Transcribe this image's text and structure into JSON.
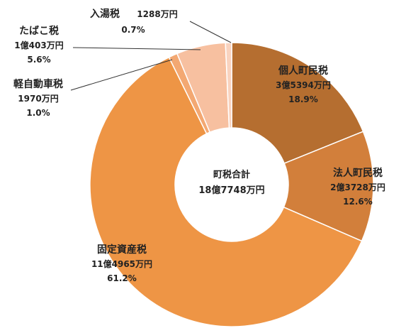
{
  "chart_data": {
    "type": "pie",
    "donut": true,
    "center_label": [
      "町税合計",
      "18億7748万円"
    ],
    "total": "18億7748万円",
    "slices": [
      {
        "name": "個人町民税",
        "amount": "3億5394万円",
        "percent_label": "18.9%",
        "value": 18.9,
        "color": "#b56e30"
      },
      {
        "name": "法人町民税",
        "amount": "2億3728万円",
        "percent_label": "12.6%",
        "value": 12.6,
        "color": "#d27f3b"
      },
      {
        "name": "固定資産税",
        "amount": "11億4965万円",
        "percent_label": "61.2%",
        "value": 61.2,
        "color": "#ee9545"
      },
      {
        "name": "軽自動車税",
        "amount": "1970万円",
        "percent_label": "1.0%",
        "value": 1.0,
        "color": "#f3a872"
      },
      {
        "name": "たばこ税",
        "amount": "1億403万円",
        "percent_label": "5.6%",
        "value": 5.6,
        "color": "#f7c0a0"
      },
      {
        "name": "入湯税",
        "amount": "1288万円",
        "percent_label": "0.7%",
        "value": 0.7,
        "color": "#f9d3bf"
      }
    ]
  }
}
